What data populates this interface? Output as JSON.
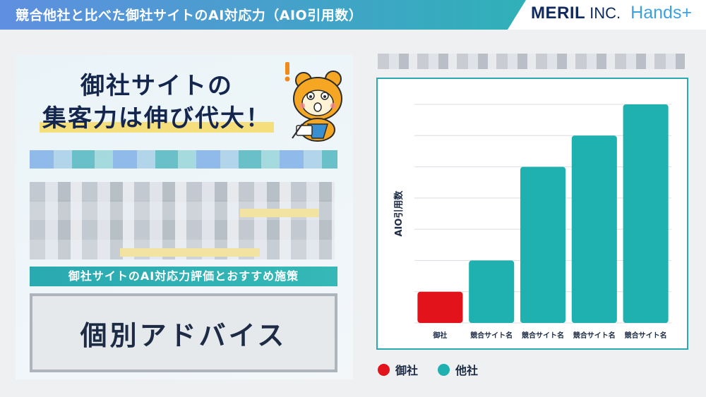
{
  "header": {
    "title": "競合他社と比べた御社サイトのAI対応力（AIO引用数）",
    "brand": {
      "name": "MERIL",
      "suffix": "INC.",
      "product": "Hands+"
    }
  },
  "promo": {
    "headline_line1": "御社サイトの",
    "headline_line2": "集客力は伸び代大！",
    "subtitle": "御社サイトのAI対応力評価とおすすめ施策",
    "advice": "個別アドバイス",
    "mascot_icon": "bear-mascot-icon"
  },
  "colors": {
    "own": "#e3131b",
    "competitor": "#1fb0b0",
    "accent": "#2aa9b1"
  },
  "chart_data": {
    "type": "bar",
    "categories": [
      "御社",
      "競合サイト名",
      "競合サイト名",
      "競合サイト名",
      "競合サイト名"
    ],
    "values": [
      1,
      2,
      5,
      6,
      7
    ],
    "groups": [
      "御社",
      "他社",
      "他社",
      "他社",
      "他社"
    ],
    "ylabel": "AIO引用数",
    "xlabel": "",
    "ylim": [
      0,
      7
    ],
    "grid": true,
    "legend": {
      "placement": "bottom-left",
      "entries": [
        {
          "label": "御社",
          "color": "#e3131b"
        },
        {
          "label": "他社",
          "color": "#1fb0b0"
        }
      ]
    }
  }
}
